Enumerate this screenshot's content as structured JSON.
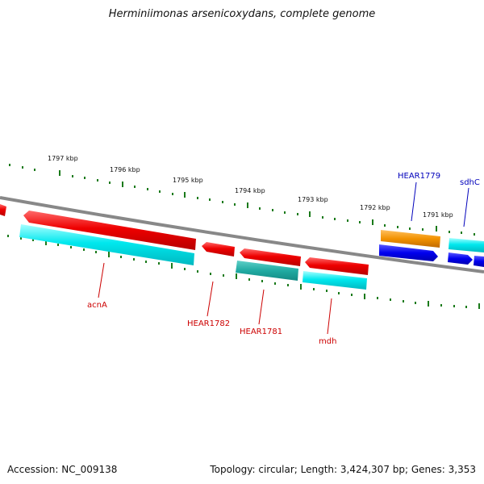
{
  "title": "Herminiimonas arsenicoxydans, complete genome",
  "footer": {
    "accession": "Accession: NC_009138",
    "topology": "Topology: circular; Length: 3,424,307 bp; Genes: 3,353"
  },
  "colors": {
    "backbone": "#808080",
    "tick": "#1a7a1a",
    "red_gene": "#ee0000",
    "cyan_gene": "#00e5ee",
    "teal_gene": "#20b2aa",
    "orange_gene": "#f29200",
    "blue_gene": "#0000ee",
    "red_label": "#cc0000",
    "blue_label": "#0000bb"
  },
  "tick_labels": [
    "1797 kbp",
    "1796 kbp",
    "1795 kbp",
    "1794 kbp",
    "1793 kbp",
    "1792 kbp",
    "1791 kbp"
  ],
  "gene_labels": {
    "acnA": "acnA",
    "hear1782": "HEAR1782",
    "hear1781": "HEAR1781",
    "mdh": "mdh",
    "hear1779": "HEAR1779",
    "sdhC": "sdhC"
  }
}
